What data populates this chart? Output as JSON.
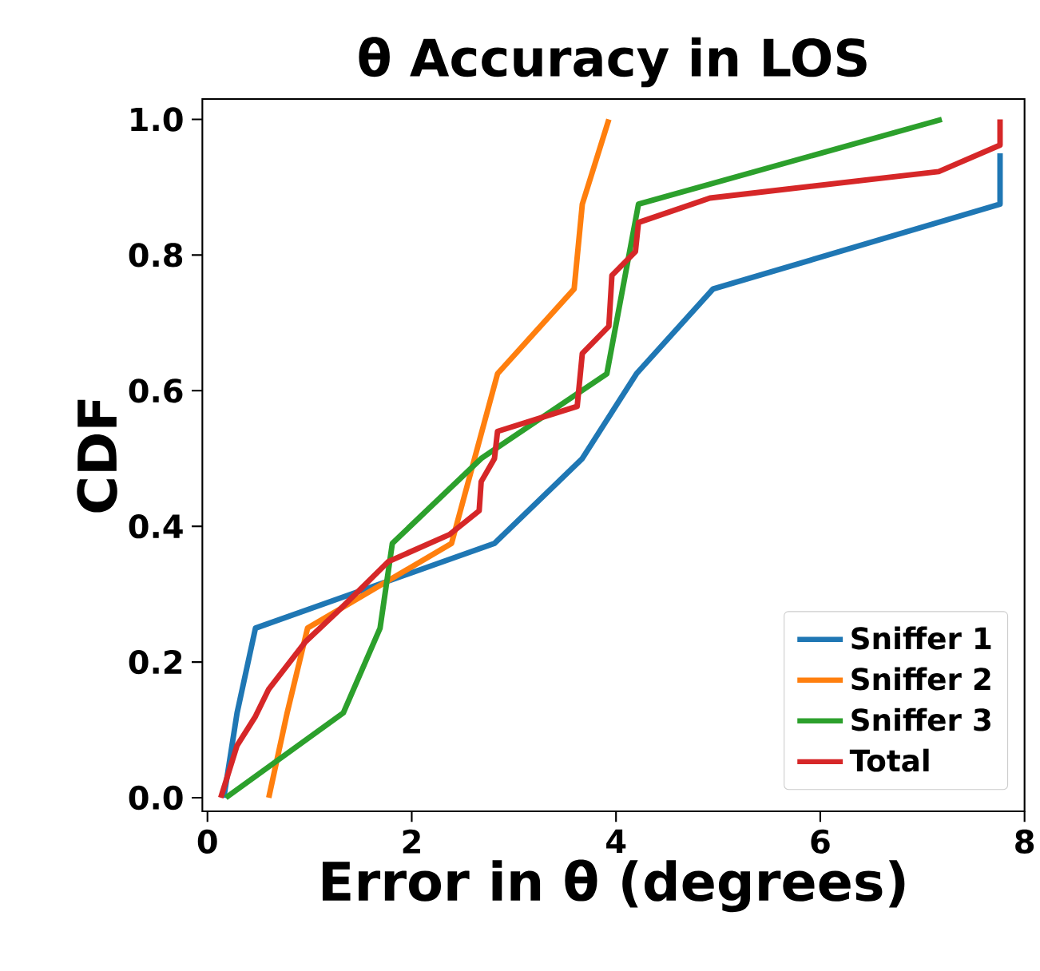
{
  "chart_data": {
    "type": "line",
    "title": "θ Accuracy in LOS",
    "xlabel": "Error in θ (degrees)",
    "ylabel": "CDF",
    "xlim": [
      -0.05,
      8.0
    ],
    "ylim": [
      -0.02,
      1.03
    ],
    "xticks": [
      0,
      2,
      4,
      6,
      8
    ],
    "yticks": [
      {
        "value": 0,
        "label": "0.0"
      },
      {
        "value": 0.2,
        "label": "0.2"
      },
      {
        "value": 0.4,
        "label": "0.4"
      },
      {
        "value": 0.6,
        "label": "0.6"
      },
      {
        "value": 0.8,
        "label": "0.8"
      },
      {
        "value": 1.0,
        "label": "1.0"
      }
    ],
    "legend": "bottom right",
    "series": [
      {
        "name": "Sniffer 1",
        "color": "#1f77b4",
        "x": [
          0.16,
          0.29,
          0.47,
          2.81,
          3.67,
          4.2,
          4.95,
          7.76,
          7.76
        ],
        "values": [
          0,
          0.125,
          0.25,
          0.375,
          0.5,
          0.625,
          0.75,
          0.875,
          0.95
        ]
      },
      {
        "name": "Sniffer 2",
        "color": "#ff7f0e",
        "x": [
          0.6,
          0.78,
          0.98,
          2.39,
          2.84,
          3.59,
          3.67,
          3.93
        ],
        "values": [
          0,
          0.125,
          0.25,
          0.375,
          0.625,
          0.75,
          0.875,
          1.0
        ]
      },
      {
        "name": "Sniffer 3",
        "color": "#2ca02c",
        "x": [
          0.18,
          1.33,
          1.69,
          1.81,
          2.68,
          3.91,
          4.22,
          7.19
        ],
        "values": [
          0,
          0.125,
          0.25,
          0.375,
          0.5,
          0.625,
          0.875,
          1.0
        ]
      },
      {
        "name": "Total",
        "color": "#d62728",
        "x": [
          0.13,
          0.29,
          0.47,
          0.6,
          0.96,
          1.3,
          1.77,
          2.37,
          2.66,
          2.68,
          2.81,
          2.84,
          3.62,
          3.67,
          3.93,
          3.96,
          4.19,
          4.22,
          4.92,
          7.16,
          7.76,
          7.76
        ],
        "values": [
          0,
          0.077,
          0.12,
          0.16,
          0.23,
          0.278,
          0.348,
          0.388,
          0.423,
          0.466,
          0.5,
          0.54,
          0.577,
          0.655,
          0.695,
          0.77,
          0.805,
          0.848,
          0.884,
          0.923,
          0.962,
          1.0
        ]
      }
    ]
  }
}
